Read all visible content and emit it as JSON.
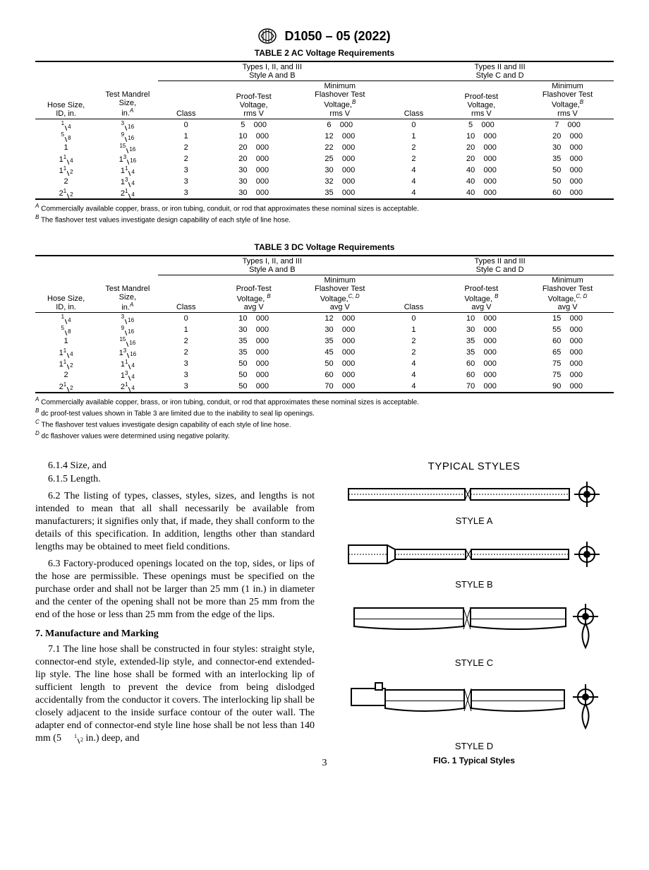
{
  "header": {
    "doc_id": "D1050 – 05 (2022)"
  },
  "page_number": "3",
  "tables": {
    "t2": {
      "title": "TABLE 2 AC Voltage Requirements",
      "group_left": "Types I, II, and III\nStyle A and B",
      "group_right": "Types II and III\nStyle C and D",
      "hdr_hose": "Hose Size,\nID, in.",
      "hdr_mandrel": "Test Mandrel\nSize,\nin.",
      "hdr_mandrel_sup": "A",
      "hdr_class": "Class",
      "hdr_proof_ab": "Proof-Test\nVoltage,\nrms V",
      "hdr_flash_ab": "Minimum\nFlashover Test\nVoltage,",
      "hdr_flash_ab_sup": "B",
      "hdr_flash_ab_unit": "rms V",
      "hdr_proof_cd": "Proof-test\nVoltage,\nrms V",
      "hdr_flash_cd": "Minimum\nFlashover Test\nVoltage,",
      "hdr_flash_cd_sup": "B",
      "hdr_flash_cd_unit": "rms V",
      "rows": [
        {
          "hose_int": "",
          "hose_num": "1",
          "hose_den": "4",
          "m_int": "",
          "m_num": "3",
          "m_den": "16",
          "c1": "0",
          "pt1": "5  000",
          "fl1": "6  000",
          "c2": "0",
          "pt2": "5  000",
          "fl2": "7  000"
        },
        {
          "hose_int": "",
          "hose_num": "5",
          "hose_den": "8",
          "m_int": "",
          "m_num": "9",
          "m_den": "16",
          "c1": "1",
          "pt1": "10  000",
          "fl1": "12  000",
          "c2": "1",
          "pt2": "10  000",
          "fl2": "20  000"
        },
        {
          "hose_int": "1",
          "hose_num": "",
          "hose_den": "",
          "m_int": "",
          "m_num": "15",
          "m_den": "16",
          "c1": "2",
          "pt1": "20  000",
          "fl1": "22  000",
          "c2": "2",
          "pt2": "20  000",
          "fl2": "30  000"
        },
        {
          "hose_int": "1",
          "hose_num": "1",
          "hose_den": "4",
          "m_int": "1",
          "m_num": "3",
          "m_den": "16",
          "c1": "2",
          "pt1": "20  000",
          "fl1": "25  000",
          "c2": "2",
          "pt2": "20  000",
          "fl2": "35  000"
        },
        {
          "hose_int": "1",
          "hose_num": "1",
          "hose_den": "2",
          "m_int": "1",
          "m_num": "1",
          "m_den": "4",
          "c1": "3",
          "pt1": "30  000",
          "fl1": "30  000",
          "c2": "4",
          "pt2": "40  000",
          "fl2": "50  000"
        },
        {
          "hose_int": "2",
          "hose_num": "",
          "hose_den": "",
          "m_int": "1",
          "m_num": "3",
          "m_den": "4",
          "c1": "3",
          "pt1": "30  000",
          "fl1": "32  000",
          "c2": "4",
          "pt2": "40  000",
          "fl2": "50  000"
        },
        {
          "hose_int": "2",
          "hose_num": "1",
          "hose_den": "2",
          "m_int": "2",
          "m_num": "1",
          "m_den": "4",
          "c1": "3",
          "pt1": "30  000",
          "fl1": "35  000",
          "c2": "4",
          "pt2": "40  000",
          "fl2": "60  000"
        }
      ],
      "notes": [
        {
          "sup": "A",
          "text": " Commercially available copper, brass, or iron tubing, conduit, or rod that approximates these nominal sizes is acceptable."
        },
        {
          "sup": "B",
          "text": " The flashover test values investigate design capability of each style of line hose."
        }
      ]
    },
    "t3": {
      "title": "TABLE 3 DC Voltage Requirements",
      "hdr_proof_ab": "Proof-Test\nVoltage, ",
      "hdr_proof_ab_sup": "B",
      "hdr_proof_ab_unit": "avg V",
      "hdr_flash_ab": "Minimum\nFlashover Test\nVoltage,",
      "hdr_flash_ab_sup": "C, D",
      "hdr_flash_ab_unit": "avg V",
      "hdr_proof_cd": "Proof-test\nVoltage, ",
      "hdr_proof_cd_sup": "B",
      "hdr_proof_cd_unit": "avg V",
      "hdr_flash_cd": "Minimum\nFlashover Test\nVoltage,",
      "hdr_flash_cd_sup": "C, D",
      "hdr_flash_cd_unit": "avg V",
      "rows": [
        {
          "hose_int": "",
          "hose_num": "1",
          "hose_den": "4",
          "m_int": "",
          "m_num": "3",
          "m_den": "16",
          "c1": "0",
          "pt1": "10  000",
          "fl1": "12  000",
          "c2": "0",
          "pt2": "10  000",
          "fl2": "15  000"
        },
        {
          "hose_int": "",
          "hose_num": "5",
          "hose_den": "8",
          "m_int": "",
          "m_num": "9",
          "m_den": "16",
          "c1": "1",
          "pt1": "30  000",
          "fl1": "30  000",
          "c2": "1",
          "pt2": "30  000",
          "fl2": "55  000"
        },
        {
          "hose_int": "1",
          "hose_num": "",
          "hose_den": "",
          "m_int": "",
          "m_num": "15",
          "m_den": "16",
          "c1": "2",
          "pt1": "35  000",
          "fl1": "35  000",
          "c2": "2",
          "pt2": "35  000",
          "fl2": "60  000"
        },
        {
          "hose_int": "1",
          "hose_num": "1",
          "hose_den": "4",
          "m_int": "1",
          "m_num": "3",
          "m_den": "16",
          "c1": "2",
          "pt1": "35  000",
          "fl1": "45  000",
          "c2": "2",
          "pt2": "35  000",
          "fl2": "65  000"
        },
        {
          "hose_int": "1",
          "hose_num": "1",
          "hose_den": "2",
          "m_int": "1",
          "m_num": "1",
          "m_den": "4",
          "c1": "3",
          "pt1": "50  000",
          "fl1": "50  000",
          "c2": "4",
          "pt2": "60  000",
          "fl2": "75  000"
        },
        {
          "hose_int": "2",
          "hose_num": "",
          "hose_den": "",
          "m_int": "1",
          "m_num": "3",
          "m_den": "4",
          "c1": "3",
          "pt1": "50  000",
          "fl1": "60  000",
          "c2": "4",
          "pt2": "60  000",
          "fl2": "75  000"
        },
        {
          "hose_int": "2",
          "hose_num": "1",
          "hose_den": "2",
          "m_int": "2",
          "m_num": "1",
          "m_den": "4",
          "c1": "3",
          "pt1": "50  000",
          "fl1": "70  000",
          "c2": "4",
          "pt2": "70  000",
          "fl2": "90  000"
        }
      ],
      "notes": [
        {
          "sup": "A",
          "text": " Commercially available copper, brass, or iron tubing, conduit, or rod that approximates these nominal sizes is acceptable."
        },
        {
          "sup": "B",
          "text": " dc proof-test values shown in Table 3 are limited due to the inability to seal lip openings."
        },
        {
          "sup": "C",
          "text": " The flashover test values investigate design capability of each style of line hose."
        },
        {
          "sup": "D",
          "text": " dc flashover values were determined using negative polarity."
        }
      ]
    }
  },
  "body": {
    "l614": "6.1.4 Size, and",
    "l615": "6.1.5 Length.",
    "p62": "6.2  The listing of types, classes, styles, sizes, and lengths is not intended to mean that all shall necessarily be available from manufacturers; it signifies only that, if made, they shall conform to the details of this specification. In addition, lengths other than standard lengths may be obtained to meet field conditions.",
    "p63": "6.3  Factory-produced openings located on the top, sides, or lips of the hose are permissible. These openings must be specified on the purchase order and shall not be larger than 25 mm (1 in.) in diameter and the center of the opening shall not be more than 25 mm from the end of the hose or less than 25 mm from the edge of the lips.",
    "h7": "7.  Manufacture and Marking",
    "p71_a": "7.1  The line hose shall be constructed in four styles: straight style, connector-end style, extended-lip style, and connector-end extended-lip style. The line hose shall be formed with an interlocking lip of sufficient length to prevent the device from being dislodged accidentally from the conductor it covers. The interlocking lip shall be closely adjacent to the inside surface contour of the outer wall. The adapter end of connector-end style line hose shall be not less than 140 mm (5",
    "p71_num": "1",
    "p71_den": "2",
    "p71_b": " in.) deep, and"
  },
  "figure": {
    "title": "TYPICAL STYLES",
    "caption": "FIG. 1  Typical Styles",
    "labels": [
      "STYLE A",
      "STYLE B",
      "STYLE C",
      "STYLE D"
    ]
  }
}
